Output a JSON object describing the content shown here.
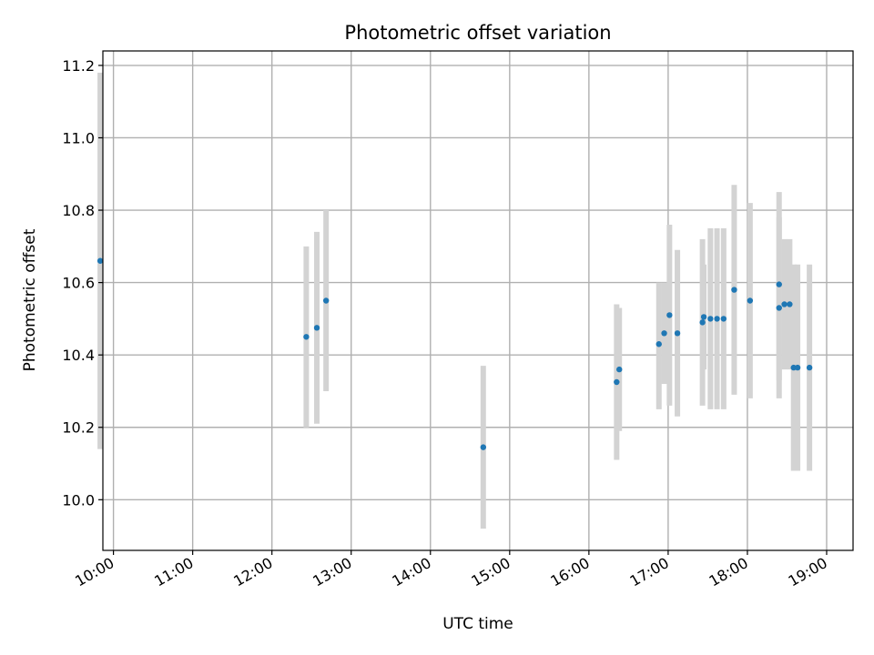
{
  "chart_data": {
    "type": "scatter",
    "title": "Photometric offset variation",
    "xlabel": "UTC time",
    "ylabel": "Photometric offset",
    "xlim": [
      "09:52",
      "19:20"
    ],
    "ylim": [
      9.86,
      11.24
    ],
    "x_ticks": [
      "10:00",
      "11:00",
      "12:00",
      "13:00",
      "14:00",
      "15:00",
      "16:00",
      "17:00",
      "18:00",
      "19:00"
    ],
    "y_ticks": [
      "10.0",
      "10.2",
      "10.4",
      "10.6",
      "10.8",
      "11.0",
      "11.2"
    ],
    "grid": true,
    "point_color": "#1f77b4",
    "errorbar_color": "#d3d3d3",
    "points": [
      {
        "x": "09:50",
        "y": 10.66,
        "ylow": 10.14,
        "yhigh": 11.18
      },
      {
        "x": "12:26",
        "y": 10.45,
        "ylow": 10.2,
        "yhigh": 10.7
      },
      {
        "x": "12:34",
        "y": 10.475,
        "ylow": 10.21,
        "yhigh": 10.74
      },
      {
        "x": "12:41",
        "y": 10.55,
        "ylow": 10.3,
        "yhigh": 10.8
      },
      {
        "x": "14:40",
        "y": 10.145,
        "ylow": 9.92,
        "yhigh": 10.37
      },
      {
        "x": "16:21",
        "y": 10.325,
        "ylow": 10.11,
        "yhigh": 10.54
      },
      {
        "x": "16:23",
        "y": 10.36,
        "ylow": 10.19,
        "yhigh": 10.53
      },
      {
        "x": "16:53",
        "y": 10.43,
        "ylow": 10.25,
        "yhigh": 10.6
      },
      {
        "x": "16:57",
        "y": 10.46,
        "ylow": 10.32,
        "yhigh": 10.6
      },
      {
        "x": "17:01",
        "y": 10.51,
        "ylow": 10.26,
        "yhigh": 10.76
      },
      {
        "x": "17:07",
        "y": 10.46,
        "ylow": 10.23,
        "yhigh": 10.69
      },
      {
        "x": "17:26",
        "y": 10.49,
        "ylow": 10.26,
        "yhigh": 10.72
      },
      {
        "x": "17:27",
        "y": 10.505,
        "ylow": 10.36,
        "yhigh": 10.65
      },
      {
        "x": "17:32",
        "y": 10.5,
        "ylow": 10.25,
        "yhigh": 10.75
      },
      {
        "x": "17:37",
        "y": 10.5,
        "ylow": 10.25,
        "yhigh": 10.75
      },
      {
        "x": "17:42",
        "y": 10.5,
        "ylow": 10.25,
        "yhigh": 10.75
      },
      {
        "x": "17:50",
        "y": 10.58,
        "ylow": 10.29,
        "yhigh": 10.87
      },
      {
        "x": "18:02",
        "y": 10.55,
        "ylow": 10.28,
        "yhigh": 10.82
      },
      {
        "x": "18:24",
        "y": 10.595,
        "ylow": 10.33,
        "yhigh": 10.85
      },
      {
        "x": "18:24",
        "y": 10.53,
        "ylow": 10.28,
        "yhigh": 10.78
      },
      {
        "x": "18:28",
        "y": 10.54,
        "ylow": 10.36,
        "yhigh": 10.72
      },
      {
        "x": "18:32",
        "y": 10.54,
        "ylow": 10.36,
        "yhigh": 10.72
      },
      {
        "x": "18:35",
        "y": 10.365,
        "ylow": 10.08,
        "yhigh": 10.65
      },
      {
        "x": "18:38",
        "y": 10.365,
        "ylow": 10.08,
        "yhigh": 10.65
      },
      {
        "x": "18:47",
        "y": 10.365,
        "ylow": 10.08,
        "yhigh": 10.65
      }
    ]
  }
}
